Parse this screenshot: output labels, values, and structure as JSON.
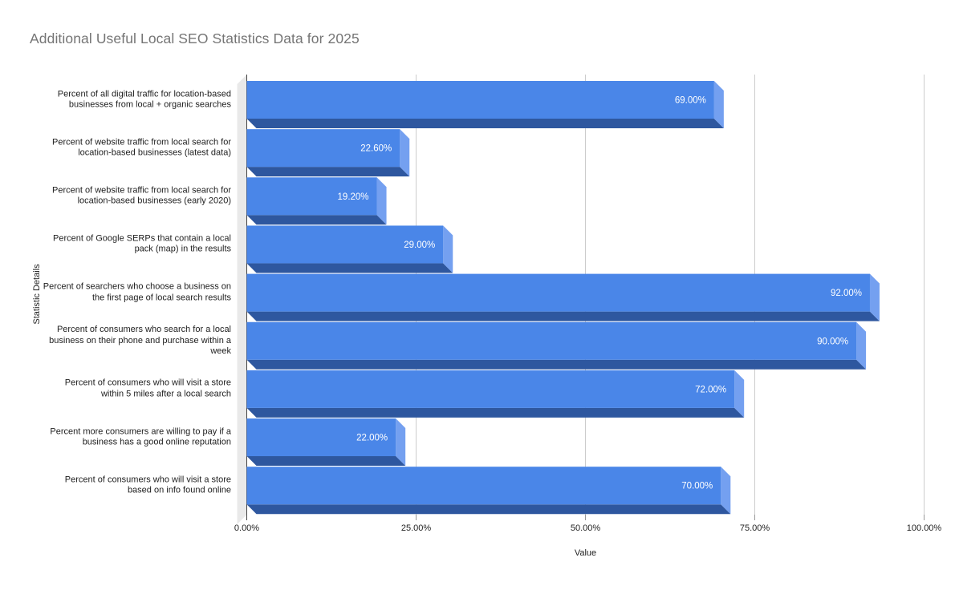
{
  "title": "Additional Useful Local SEO Statistics Data for 2025",
  "chart_data": {
    "type": "bar",
    "orientation": "horizontal",
    "style": "3d",
    "title": "Additional Useful Local SEO Statistics Data for 2025",
    "xlabel": "Value",
    "ylabel": "Statistic Details",
    "xlim": [
      0,
      100
    ],
    "x_ticks": [
      "0.00%",
      "25.00%",
      "50.00%",
      "75.00%",
      "100.00%"
    ],
    "x_tick_values": [
      0,
      25,
      50,
      75,
      100
    ],
    "grid": "vertical",
    "legend": "none",
    "categories": [
      "Percent of all digital traffic for location-based businesses from local + organic searches",
      "Percent of website traffic from local search for location-based businesses (latest data)",
      "Percent of website traffic from local search for location-based businesses (early 2020)",
      "Percent of Google SERPs that contain a local pack (map) in the results",
      "Percent of searchers who choose a business on the first page of local search results",
      "Percent of consumers who search for a local business on their phone and purchase within a week",
      "Percent of consumers who will visit a store within 5 miles after a local search",
      "Percent more consumers are willing to pay if a business has a good online reputation",
      "Percent of consumers who will visit a store based on info found online"
    ],
    "values": [
      69,
      22.6,
      19.2,
      29,
      92,
      90,
      72,
      22,
      70
    ],
    "value_labels": [
      "69.00%",
      "22.60%",
      "19.20%",
      "29.00%",
      "92.00%",
      "90.00%",
      "72.00%",
      "22.00%",
      "70.00%"
    ],
    "colors": {
      "bar_front": "#4a86e8",
      "bar_side": "#74a0f0",
      "bar_bottom": "#2e579f",
      "wall": "#e9e9e9",
      "gridline": "#cccccc",
      "axis_line": "#424242",
      "tick_mark": "#999999",
      "tick_label": "#212121",
      "category_label": "#212121",
      "value_label": "#ffffff",
      "title": "#757575"
    }
  }
}
